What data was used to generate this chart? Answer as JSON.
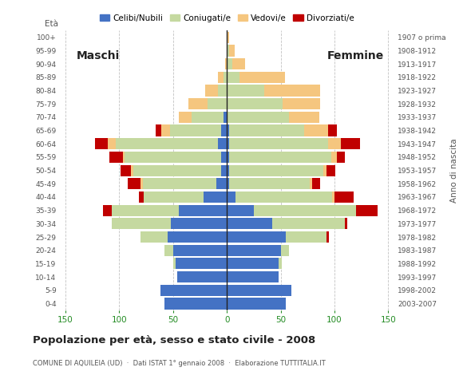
{
  "age_groups": [
    "0-4",
    "5-9",
    "10-14",
    "15-19",
    "20-24",
    "25-29",
    "30-34",
    "35-39",
    "40-44",
    "45-49",
    "50-54",
    "55-59",
    "60-64",
    "65-69",
    "70-74",
    "75-79",
    "80-84",
    "85-89",
    "90-94",
    "95-99",
    "100+"
  ],
  "birth_years": [
    "2003-2007",
    "1998-2002",
    "1993-1997",
    "1988-1992",
    "1983-1987",
    "1978-1982",
    "1973-1977",
    "1968-1972",
    "1963-1967",
    "1958-1962",
    "1953-1957",
    "1948-1952",
    "1943-1947",
    "1938-1942",
    "1933-1937",
    "1928-1932",
    "1923-1927",
    "1918-1922",
    "1913-1917",
    "1908-1912",
    "1907 o prima"
  ],
  "colors": {
    "celibe": "#4472c4",
    "coniugato": "#c5d9a0",
    "vedovo": "#f5c67f",
    "divorziato": "#c00000"
  },
  "males": {
    "celibe": [
      58,
      62,
      46,
      48,
      50,
      55,
      52,
      45,
      22,
      10,
      5,
      5,
      8,
      5,
      3,
      0,
      0,
      0,
      0,
      0,
      0
    ],
    "coniugato": [
      0,
      0,
      0,
      2,
      8,
      25,
      55,
      62,
      55,
      68,
      82,
      90,
      95,
      48,
      30,
      18,
      8,
      3,
      0,
      0,
      0
    ],
    "vedovo": [
      0,
      0,
      0,
      0,
      0,
      0,
      0,
      0,
      0,
      2,
      2,
      2,
      8,
      8,
      12,
      18,
      12,
      5,
      2,
      0,
      0
    ],
    "divorziato": [
      0,
      0,
      0,
      0,
      0,
      0,
      0,
      8,
      5,
      12,
      10,
      12,
      12,
      5,
      0,
      0,
      0,
      0,
      0,
      0,
      0
    ]
  },
  "females": {
    "nubile": [
      55,
      60,
      48,
      48,
      50,
      55,
      42,
      25,
      8,
      2,
      2,
      2,
      2,
      2,
      0,
      0,
      0,
      0,
      0,
      0,
      0
    ],
    "coniugata": [
      0,
      0,
      0,
      3,
      8,
      38,
      68,
      95,
      90,
      75,
      88,
      95,
      92,
      70,
      58,
      52,
      35,
      12,
      5,
      2,
      0
    ],
    "vedova": [
      0,
      0,
      0,
      0,
      0,
      0,
      0,
      0,
      2,
      2,
      3,
      5,
      12,
      22,
      28,
      35,
      52,
      42,
      12,
      5,
      2
    ],
    "divorziata": [
      0,
      0,
      0,
      0,
      0,
      2,
      2,
      20,
      18,
      8,
      8,
      8,
      18,
      8,
      0,
      0,
      0,
      0,
      0,
      0,
      0
    ]
  },
  "title": "Popolazione per età, sesso e stato civile - 2008",
  "subtitle": "COMUNE DI AQUILEIA (UD)  ·  Dati ISTAT 1° gennaio 2008  ·  Elaborazione TUTTITALIA.IT",
  "xlabel_left": "Maschi",
  "xlabel_right": "Femmine",
  "ylabel_left": "À",
  "ylabel_right": "Anno di nascita",
  "xlim": 155,
  "background_color": "#ffffff",
  "legend_labels": [
    "Celibi/Nubili",
    "Coniugati/e",
    "Vedovi/e",
    "Divorziati/e"
  ],
  "grid_color": "#bbbbbb",
  "axis_color": "#555555",
  "xaxis_label_color": "#228B22"
}
